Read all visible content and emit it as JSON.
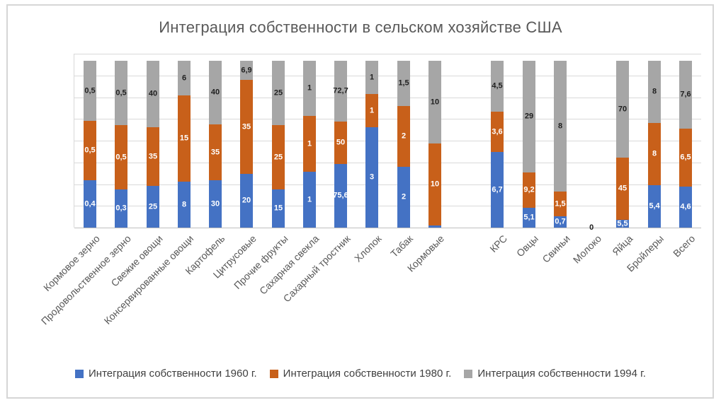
{
  "chart_data": {
    "type": "bar",
    "subtype": "percent-stacked-column",
    "title": "Интеграция собственности в сельском хозяйстве США",
    "grid": true,
    "legend_position": "bottom",
    "axis": {
      "y_tick_labels_visible": false,
      "gridline_count": 9
    },
    "legend": [
      {
        "key": "1960",
        "name": "Интеграция собственности 1960 г.",
        "color": "#4472C4",
        "label_color": "#FFFFFF"
      },
      {
        "key": "1980",
        "name": "Интеграция собственности 1980 г.",
        "color": "#C8601A",
        "label_color": "#FFFFFF"
      },
      {
        "key": "1994",
        "name": "Интеграция собственности 1994 г.",
        "color": "#A6A6A6",
        "label_color": "#1F1F1F"
      }
    ],
    "categories": [
      {
        "name": "Кормовое зерно",
        "segments": [
          {
            "value": 0.4,
            "label": "0,4"
          },
          {
            "value": 0.5,
            "label": "0,5"
          },
          {
            "value": 0.5,
            "label": "0,5"
          }
        ]
      },
      {
        "name": "Продовольственное зерно",
        "segments": [
          {
            "value": 0.3,
            "label": "0,3"
          },
          {
            "value": 0.5,
            "label": "0,5"
          },
          {
            "value": 0.5,
            "label": "0,5"
          }
        ]
      },
      {
        "name": "Свежие овощи",
        "segments": [
          {
            "value": 25,
            "label": "25"
          },
          {
            "value": 35,
            "label": "35"
          },
          {
            "value": 40,
            "label": "40"
          }
        ]
      },
      {
        "name": "Консервированные овощи",
        "segments": [
          {
            "value": 8,
            "label": "8"
          },
          {
            "value": 15,
            "label": "15"
          },
          {
            "value": 6,
            "label": "6"
          }
        ]
      },
      {
        "name": "Картофель",
        "segments": [
          {
            "value": 30,
            "label": "30"
          },
          {
            "value": 35,
            "label": "35"
          },
          {
            "value": 40,
            "label": "40"
          }
        ]
      },
      {
        "name": "Цитрусовые",
        "segments": [
          {
            "value": 20,
            "label": "20"
          },
          {
            "value": 35,
            "label": "35"
          },
          {
            "value": 6.9,
            "label": "6,9"
          }
        ]
      },
      {
        "name": "Прочие фрукты",
        "segments": [
          {
            "value": 15,
            "label": "15"
          },
          {
            "value": 25,
            "label": "25"
          },
          {
            "value": 25,
            "label": "25"
          }
        ]
      },
      {
        "name": "Сахарная свекла",
        "segments": [
          {
            "value": 1,
            "label": "1"
          },
          {
            "value": 1,
            "label": "1"
          },
          {
            "value": 1,
            "label": "1"
          }
        ]
      },
      {
        "name": "Сахарный тростник",
        "segments": [
          {
            "value": 75.6,
            "label": "75,6"
          },
          {
            "value": 50,
            "label": "50"
          },
          {
            "value": 72.7,
            "label": "72,7"
          }
        ]
      },
      {
        "name": "Хлопок",
        "segments": [
          {
            "value": 3,
            "label": "3"
          },
          {
            "value": 1,
            "label": "1"
          },
          {
            "value": 1,
            "label": "1"
          }
        ]
      },
      {
        "name": "Табак",
        "segments": [
          {
            "value": 2,
            "label": "2"
          },
          {
            "value": 2,
            "label": "2"
          },
          {
            "value": 1.5,
            "label": "1,5"
          }
        ]
      },
      {
        "name": "Кормовые",
        "segments": [
          {
            "value": 0.3,
            "label": "",
            "estimated": true
          },
          {
            "value": 10,
            "label": "10"
          },
          {
            "value": 10,
            "label": "10"
          }
        ]
      },
      {
        "name": "",
        "spacer": true
      },
      {
        "name": "КРС",
        "segments": [
          {
            "value": 6.7,
            "label": "6,7"
          },
          {
            "value": 3.6,
            "label": "3,6"
          },
          {
            "value": 4.5,
            "label": "4,5"
          }
        ]
      },
      {
        "name": "Овцы",
        "segments": [
          {
            "value": 5.1,
            "label": "5,1"
          },
          {
            "value": 9.2,
            "label": "9,2"
          },
          {
            "value": 29,
            "label": "29"
          }
        ]
      },
      {
        "name": "Свиньи",
        "segments": [
          {
            "value": 0.7,
            "label": "0,7"
          },
          {
            "value": 1.5,
            "label": "1,5"
          },
          {
            "value": 8,
            "label": "8"
          }
        ]
      },
      {
        "name": "Молоко",
        "baseline_label": "0",
        "segments": [
          {
            "value": 0,
            "label": ""
          },
          {
            "value": 0,
            "label": ""
          },
          {
            "value": 0,
            "label": ""
          }
        ]
      },
      {
        "name": "Яйца",
        "segments": [
          {
            "value": 5.5,
            "label": "5,5"
          },
          {
            "value": 45,
            "label": "45"
          },
          {
            "value": 70,
            "label": "70"
          }
        ]
      },
      {
        "name": "Бройлеры",
        "segments": [
          {
            "value": 5.4,
            "label": "5,4"
          },
          {
            "value": 8,
            "label": "8"
          },
          {
            "value": 8,
            "label": "8"
          }
        ]
      },
      {
        "name": "Всего",
        "segments": [
          {
            "value": 4.6,
            "label": "4,6"
          },
          {
            "value": 6.5,
            "label": "6,5"
          },
          {
            "value": 7.6,
            "label": "7,6"
          }
        ]
      }
    ]
  }
}
